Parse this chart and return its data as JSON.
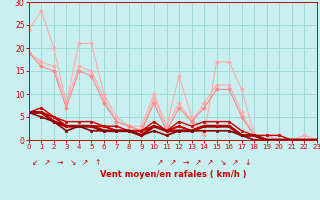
{
  "background_color": "#c8f0f0",
  "grid_color": "#a0d8d8",
  "xlabel": "Vent moyen/en rafales ( km/h )",
  "xlabel_color": "#cc0000",
  "tick_color": "#cc0000",
  "xlim": [
    0,
    23
  ],
  "ylim": [
    0,
    30
  ],
  "xticks": [
    0,
    1,
    2,
    3,
    4,
    5,
    6,
    7,
    8,
    9,
    10,
    11,
    12,
    13,
    14,
    15,
    16,
    17,
    18,
    19,
    20,
    21,
    22,
    23
  ],
  "yticks": [
    0,
    5,
    10,
    15,
    20,
    25,
    30
  ],
  "lines": [
    {
      "x": [
        0,
        1,
        2,
        3,
        4,
        5,
        6,
        7,
        8,
        9,
        10,
        11,
        12,
        13,
        14,
        15,
        16,
        17,
        18,
        19,
        20,
        21,
        22,
        23
      ],
      "y": [
        24,
        28,
        20,
        8,
        21,
        21,
        10,
        5,
        3,
        3,
        10,
        3,
        14,
        5,
        1,
        17,
        17,
        11,
        1,
        1,
        1,
        0,
        1,
        0
      ],
      "color": "#ffaaaa",
      "lw": 0.8,
      "marker": "D",
      "ms": 2.0
    },
    {
      "x": [
        0,
        1,
        2,
        3,
        4,
        5,
        6,
        7,
        8,
        9,
        10,
        11,
        12,
        13,
        14,
        15,
        16,
        17,
        18,
        19,
        20,
        21,
        22,
        23
      ],
      "y": [
        19,
        17,
        16,
        8,
        16,
        15,
        9,
        4,
        3,
        2,
        9,
        3,
        8,
        4,
        8,
        12,
        12,
        6,
        1,
        1,
        0,
        0,
        0,
        0
      ],
      "color": "#ffaaaa",
      "lw": 0.8,
      "marker": "D",
      "ms": 2.0
    },
    {
      "x": [
        0,
        1,
        2,
        3,
        4,
        5,
        6,
        7,
        8,
        9,
        10,
        11,
        12,
        13,
        14,
        15,
        16,
        17,
        18,
        19,
        20,
        21,
        22,
        23
      ],
      "y": [
        19,
        16,
        15,
        7,
        15,
        14,
        8,
        4,
        3,
        2,
        8,
        2,
        7,
        4,
        7,
        11,
        11,
        5,
        1,
        0,
        0,
        0,
        0,
        0
      ],
      "color": "#ff8888",
      "lw": 0.8,
      "marker": "D",
      "ms": 2.0
    },
    {
      "x": [
        0,
        1,
        2,
        3,
        4,
        5,
        6,
        7,
        8,
        9,
        10,
        11,
        12,
        13,
        14,
        15,
        16,
        17,
        18,
        19,
        20,
        21,
        22,
        23
      ],
      "y": [
        6,
        7,
        5,
        4,
        4,
        4,
        3,
        3,
        2,
        2,
        4,
        2,
        4,
        3,
        4,
        4,
        4,
        2,
        1,
        1,
        1,
        0,
        0,
        0
      ],
      "color": "#cc0000",
      "lw": 1.0,
      "marker": "s",
      "ms": 2.0
    },
    {
      "x": [
        0,
        1,
        2,
        3,
        4,
        5,
        6,
        7,
        8,
        9,
        10,
        11,
        12,
        13,
        14,
        15,
        16,
        17,
        18,
        19,
        20,
        21,
        22,
        23
      ],
      "y": [
        6,
        6,
        5,
        3,
        3,
        3,
        3,
        2,
        2,
        2,
        3,
        2,
        3,
        2,
        3,
        3,
        3,
        1,
        1,
        0,
        0,
        0,
        0,
        0
      ],
      "color": "#cc0000",
      "lw": 1.5,
      "marker": "s",
      "ms": 2.0
    },
    {
      "x": [
        0,
        1,
        2,
        3,
        4,
        5,
        6,
        7,
        8,
        9,
        10,
        11,
        12,
        13,
        14,
        15,
        16,
        17,
        18,
        19,
        20,
        21,
        22,
        23
      ],
      "y": [
        6,
        6,
        4,
        3,
        3,
        3,
        2,
        2,
        2,
        1,
        3,
        2,
        2,
        2,
        3,
        3,
        3,
        1,
        1,
        0,
        0,
        0,
        0,
        0
      ],
      "color": "#aa0000",
      "lw": 2.0,
      "marker": "s",
      "ms": 2.0
    },
    {
      "x": [
        0,
        1,
        2,
        3,
        4,
        5,
        6,
        7,
        8,
        9,
        10,
        11,
        12,
        13,
        14,
        15,
        16,
        17,
        18,
        19,
        20,
        21,
        22,
        23
      ],
      "y": [
        6,
        5,
        4,
        2,
        3,
        2,
        2,
        2,
        2,
        1,
        2,
        1,
        2,
        2,
        2,
        2,
        2,
        1,
        0,
        0,
        0,
        0,
        0,
        0
      ],
      "color": "#880000",
      "lw": 1.2,
      "marker": "s",
      "ms": 1.5
    }
  ],
  "arrows_x": [
    0.5,
    1.5,
    2.5,
    3.5,
    4.5,
    5.5,
    10.5,
    11.5,
    12.5,
    13.5,
    14.5,
    15.5,
    16.5,
    17.5
  ],
  "arrows_sym": [
    "↙",
    "↗",
    "→",
    "↘",
    "↗",
    "↑",
    "↗",
    "↗",
    "→",
    "↗",
    "↗",
    "↘",
    "↗",
    "↓"
  ]
}
